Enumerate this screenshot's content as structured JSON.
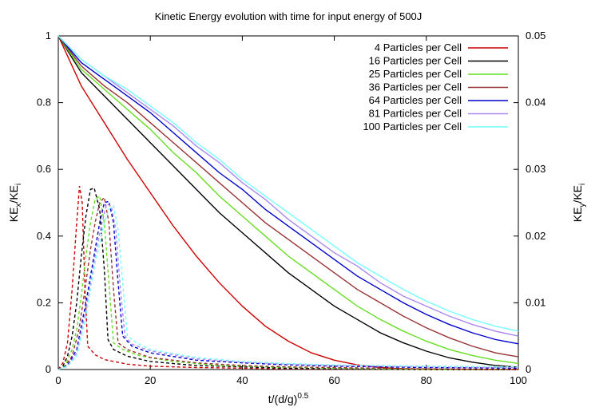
{
  "chart_data": {
    "type": "line",
    "title": "Kinetic Energy evolution with time for input energy of 500J",
    "xlabel": {
      "base": "t/(d/g)",
      "sup": "0.5"
    },
    "ylabel_left": {
      "base": "KE",
      "sub1": "x",
      "mid": "/KE",
      "sub2": "i"
    },
    "ylabel_right": {
      "base": "KE",
      "sub1": "y",
      "mid": "/KE",
      "sub2": "i"
    },
    "xlim": [
      0,
      100
    ],
    "ylim_left": [
      0,
      1
    ],
    "ylim_right": [
      0,
      0.05
    ],
    "x_ticks": [
      "0",
      "20",
      "40",
      "60",
      "80",
      "100"
    ],
    "y_left_ticks": [
      "0",
      "0.2",
      "0.4",
      "0.6",
      "0.8",
      "1"
    ],
    "y_right_ticks": [
      "0",
      "0.01",
      "0.02",
      "0.03",
      "0.04",
      "0.05"
    ],
    "grid": false,
    "legend_position": "top-right",
    "series": [
      {
        "name": "4 Particles per Cell",
        "color": "#cc0000",
        "kex": [
          [
            0,
            1
          ],
          [
            5,
            0.85
          ],
          [
            10,
            0.74
          ],
          [
            15,
            0.63
          ],
          [
            20,
            0.53
          ],
          [
            25,
            0.43
          ],
          [
            30,
            0.34
          ],
          [
            35,
            0.26
          ],
          [
            40,
            0.19
          ],
          [
            45,
            0.13
          ],
          [
            50,
            0.085
          ],
          [
            55,
            0.05
          ],
          [
            60,
            0.028
          ],
          [
            65,
            0.014
          ],
          [
            70,
            0.006
          ],
          [
            75,
            0.002
          ],
          [
            80,
            0.001
          ],
          [
            90,
            0
          ],
          [
            100,
            0
          ]
        ],
        "key": [
          [
            0,
            0
          ],
          [
            1,
            0.001
          ],
          [
            2,
            0.004
          ],
          [
            3,
            0.012
          ],
          [
            4,
            0.022
          ],
          [
            4.6,
            0.0275
          ],
          [
            5.2,
            0.025
          ],
          [
            5.8,
            0.012
          ],
          [
            6.4,
            0.0035
          ],
          [
            8,
            0.0022
          ],
          [
            10,
            0.0015
          ],
          [
            15,
            0.0008
          ],
          [
            20,
            0.0005
          ],
          [
            30,
            0.0003
          ],
          [
            40,
            0.0002
          ],
          [
            50,
            0.0001
          ],
          [
            60,
            5e-05
          ],
          [
            80,
            0
          ],
          [
            100,
            0
          ]
        ]
      },
      {
        "name": "16 Particles per Cell",
        "color": "#000000",
        "kex": [
          [
            0,
            1
          ],
          [
            5,
            0.89
          ],
          [
            10,
            0.82
          ],
          [
            15,
            0.75
          ],
          [
            20,
            0.68
          ],
          [
            25,
            0.61
          ],
          [
            30,
            0.54
          ],
          [
            35,
            0.47
          ],
          [
            40,
            0.41
          ],
          [
            45,
            0.35
          ],
          [
            50,
            0.29
          ],
          [
            55,
            0.24
          ],
          [
            60,
            0.19
          ],
          [
            65,
            0.15
          ],
          [
            70,
            0.11
          ],
          [
            75,
            0.08
          ],
          [
            80,
            0.055
          ],
          [
            85,
            0.035
          ],
          [
            90,
            0.022
          ],
          [
            95,
            0.012
          ],
          [
            100,
            0.007
          ]
        ],
        "key": [
          [
            0,
            0
          ],
          [
            1,
            0.0005
          ],
          [
            2,
            0.002
          ],
          [
            3,
            0.005
          ],
          [
            4,
            0.01
          ],
          [
            5,
            0.017
          ],
          [
            6,
            0.023
          ],
          [
            7,
            0.027
          ],
          [
            7.8,
            0.0272
          ],
          [
            9,
            0.024
          ],
          [
            10,
            0.015
          ],
          [
            10.8,
            0.0045
          ],
          [
            12,
            0.003
          ],
          [
            15,
            0.002
          ],
          [
            20,
            0.0012
          ],
          [
            30,
            0.0006
          ],
          [
            40,
            0.0004
          ],
          [
            50,
            0.0002
          ],
          [
            60,
            0.0001
          ],
          [
            80,
            0
          ],
          [
            100,
            0
          ]
        ]
      },
      {
        "name": "25 Particles per Cell",
        "color": "#66dd22",
        "kex": [
          [
            0,
            1
          ],
          [
            5,
            0.9
          ],
          [
            10,
            0.84
          ],
          [
            15,
            0.78
          ],
          [
            20,
            0.72
          ],
          [
            25,
            0.65
          ],
          [
            30,
            0.59
          ],
          [
            35,
            0.52
          ],
          [
            40,
            0.46
          ],
          [
            45,
            0.4
          ],
          [
            50,
            0.34
          ],
          [
            55,
            0.29
          ],
          [
            60,
            0.24
          ],
          [
            65,
            0.19
          ],
          [
            70,
            0.15
          ],
          [
            75,
            0.115
          ],
          [
            80,
            0.085
          ],
          [
            85,
            0.06
          ],
          [
            90,
            0.042
          ],
          [
            95,
            0.028
          ],
          [
            100,
            0.018
          ]
        ],
        "key": [
          [
            0,
            0
          ],
          [
            1.5,
            0.0006
          ],
          [
            3,
            0.003
          ],
          [
            4,
            0.006
          ],
          [
            5,
            0.011
          ],
          [
            6,
            0.017
          ],
          [
            7,
            0.022
          ],
          [
            8,
            0.0255
          ],
          [
            9,
            0.026
          ],
          [
            10,
            0.022
          ],
          [
            11,
            0.013
          ],
          [
            12,
            0.004
          ],
          [
            14,
            0.003
          ],
          [
            18,
            0.002
          ],
          [
            25,
            0.0012
          ],
          [
            35,
            0.0006
          ],
          [
            45,
            0.0004
          ],
          [
            60,
            0.0002
          ],
          [
            80,
            0
          ],
          [
            100,
            0
          ]
        ]
      },
      {
        "name": "36 Particles per Cell",
        "color": "#993333",
        "kex": [
          [
            0,
            1
          ],
          [
            5,
            0.91
          ],
          [
            10,
            0.85
          ],
          [
            15,
            0.8
          ],
          [
            20,
            0.74
          ],
          [
            25,
            0.68
          ],
          [
            30,
            0.62
          ],
          [
            35,
            0.56
          ],
          [
            40,
            0.5
          ],
          [
            45,
            0.44
          ],
          [
            50,
            0.39
          ],
          [
            55,
            0.34
          ],
          [
            60,
            0.29
          ],
          [
            65,
            0.24
          ],
          [
            70,
            0.2
          ],
          [
            75,
            0.16
          ],
          [
            80,
            0.125
          ],
          [
            85,
            0.095
          ],
          [
            90,
            0.07
          ],
          [
            95,
            0.05
          ],
          [
            100,
            0.038
          ]
        ],
        "key": [
          [
            0,
            0
          ],
          [
            1.5,
            0.0005
          ],
          [
            3,
            0.002
          ],
          [
            4.5,
            0.006
          ],
          [
            6,
            0.013
          ],
          [
            7,
            0.018
          ],
          [
            8,
            0.022
          ],
          [
            9,
            0.025
          ],
          [
            10,
            0.0258
          ],
          [
            11,
            0.022
          ],
          [
            12,
            0.012
          ],
          [
            13,
            0.004
          ],
          [
            15,
            0.003
          ],
          [
            20,
            0.0018
          ],
          [
            30,
            0.001
          ],
          [
            40,
            0.0006
          ],
          [
            50,
            0.0004
          ],
          [
            60,
            0.0003
          ],
          [
            80,
            0.0001
          ],
          [
            100,
            0
          ]
        ]
      },
      {
        "name": "64 Particles per Cell",
        "color": "#0000cc",
        "kex": [
          [
            0,
            1
          ],
          [
            5,
            0.92
          ],
          [
            10,
            0.87
          ],
          [
            15,
            0.82
          ],
          [
            20,
            0.77
          ],
          [
            25,
            0.71
          ],
          [
            30,
            0.65
          ],
          [
            35,
            0.59
          ],
          [
            40,
            0.54
          ],
          [
            45,
            0.48
          ],
          [
            50,
            0.43
          ],
          [
            55,
            0.38
          ],
          [
            60,
            0.33
          ],
          [
            65,
            0.28
          ],
          [
            70,
            0.24
          ],
          [
            75,
            0.2
          ],
          [
            80,
            0.165
          ],
          [
            85,
            0.135
          ],
          [
            90,
            0.11
          ],
          [
            95,
            0.09
          ],
          [
            100,
            0.077
          ]
        ],
        "key": [
          [
            0,
            0
          ],
          [
            2,
            0.0006
          ],
          [
            4,
            0.003
          ],
          [
            6,
            0.01
          ],
          [
            8,
            0.018
          ],
          [
            9,
            0.022
          ],
          [
            10,
            0.025
          ],
          [
            11,
            0.0252
          ],
          [
            12,
            0.022
          ],
          [
            13,
            0.013
          ],
          [
            14,
            0.005
          ],
          [
            16,
            0.0035
          ],
          [
            20,
            0.0025
          ],
          [
            30,
            0.0014
          ],
          [
            40,
            0.001
          ],
          [
            50,
            0.0007
          ],
          [
            60,
            0.0005
          ],
          [
            80,
            0.0003
          ],
          [
            100,
            0.0002
          ]
        ]
      },
      {
        "name": "81 Particles per Cell",
        "color": "#aa88ee",
        "kex": [
          [
            0,
            1
          ],
          [
            5,
            0.93
          ],
          [
            10,
            0.88
          ],
          [
            15,
            0.83
          ],
          [
            20,
            0.78
          ],
          [
            25,
            0.73
          ],
          [
            30,
            0.67
          ],
          [
            35,
            0.62
          ],
          [
            40,
            0.56
          ],
          [
            45,
            0.51
          ],
          [
            50,
            0.45
          ],
          [
            55,
            0.4
          ],
          [
            60,
            0.35
          ],
          [
            65,
            0.31
          ],
          [
            70,
            0.26
          ],
          [
            75,
            0.22
          ],
          [
            80,
            0.19
          ],
          [
            85,
            0.16
          ],
          [
            90,
            0.135
          ],
          [
            95,
            0.115
          ],
          [
            100,
            0.1
          ]
        ],
        "key": [
          [
            0,
            0
          ],
          [
            2,
            0.0005
          ],
          [
            4,
            0.0025
          ],
          [
            6,
            0.009
          ],
          [
            8,
            0.017
          ],
          [
            9.5,
            0.022
          ],
          [
            10.5,
            0.0248
          ],
          [
            11.5,
            0.0245
          ],
          [
            12.5,
            0.021
          ],
          [
            13.5,
            0.012
          ],
          [
            14.5,
            0.005
          ],
          [
            16,
            0.0038
          ],
          [
            20,
            0.0028
          ],
          [
            30,
            0.0016
          ],
          [
            40,
            0.0011
          ],
          [
            50,
            0.0008
          ],
          [
            60,
            0.0006
          ],
          [
            80,
            0.0004
          ],
          [
            100,
            0.0003
          ]
        ]
      },
      {
        "name": "100 Particles per Cell",
        "color": "#77ffff",
        "kex": [
          [
            0,
            1
          ],
          [
            5,
            0.93
          ],
          [
            10,
            0.88
          ],
          [
            15,
            0.84
          ],
          [
            20,
            0.79
          ],
          [
            25,
            0.74
          ],
          [
            30,
            0.68
          ],
          [
            35,
            0.63
          ],
          [
            40,
            0.57
          ],
          [
            45,
            0.52
          ],
          [
            50,
            0.47
          ],
          [
            55,
            0.42
          ],
          [
            60,
            0.37
          ],
          [
            65,
            0.32
          ],
          [
            70,
            0.28
          ],
          [
            75,
            0.24
          ],
          [
            80,
            0.205
          ],
          [
            85,
            0.175
          ],
          [
            90,
            0.15
          ],
          [
            95,
            0.13
          ],
          [
            100,
            0.115
          ]
        ],
        "key": [
          [
            0,
            0
          ],
          [
            2,
            0.0005
          ],
          [
            4,
            0.002
          ],
          [
            6,
            0.008
          ],
          [
            8,
            0.016
          ],
          [
            10,
            0.022
          ],
          [
            11,
            0.024
          ],
          [
            12,
            0.0245
          ],
          [
            13,
            0.021
          ],
          [
            14,
            0.013
          ],
          [
            15,
            0.005
          ],
          [
            17,
            0.004
          ],
          [
            20,
            0.003
          ],
          [
            30,
            0.0018
          ],
          [
            40,
            0.0012
          ],
          [
            50,
            0.0009
          ],
          [
            60,
            0.0007
          ],
          [
            80,
            0.0005
          ],
          [
            100,
            0.0004
          ]
        ]
      }
    ]
  }
}
